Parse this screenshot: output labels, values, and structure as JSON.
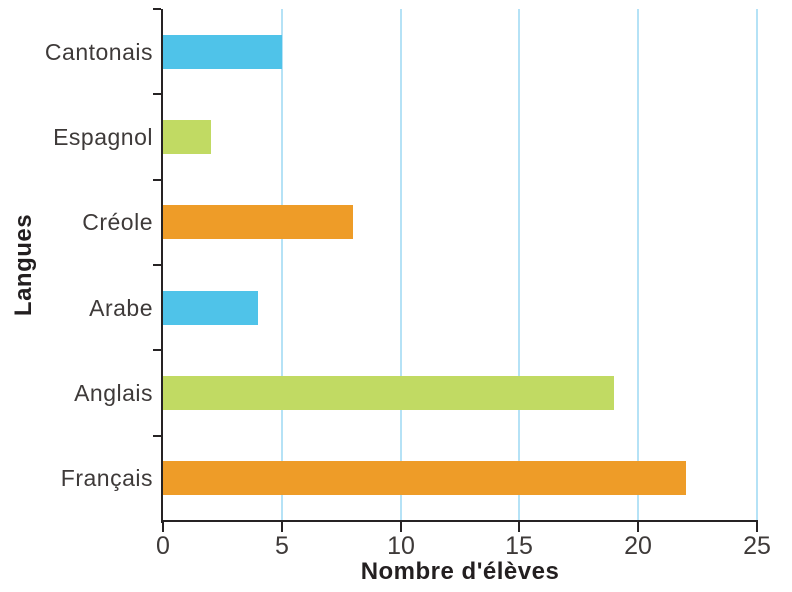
{
  "chart_data": {
    "type": "bar",
    "orientation": "horizontal",
    "title": "",
    "xlabel": "Nombre d'élèves",
    "ylabel": "Langues",
    "categories": [
      "Cantonais",
      "Espagnol",
      "Créole",
      "Arabe",
      "Anglais",
      "Français"
    ],
    "values": [
      5,
      2,
      8,
      4,
      19,
      22
    ],
    "bar_colors": [
      "#4FC3E9",
      "#C1DA63",
      "#EE9C28",
      "#4FC3E9",
      "#C1DA63",
      "#EE9C28"
    ],
    "xlim": [
      0,
      25
    ],
    "xticks": [
      0,
      5,
      10,
      15,
      20,
      25
    ],
    "grid": "vertical-only",
    "grid_color": "#B5E2F6",
    "axis_color": "#262324",
    "text_color": "#3E3A39",
    "title_text_color": "#231F20",
    "legend": "none"
  }
}
